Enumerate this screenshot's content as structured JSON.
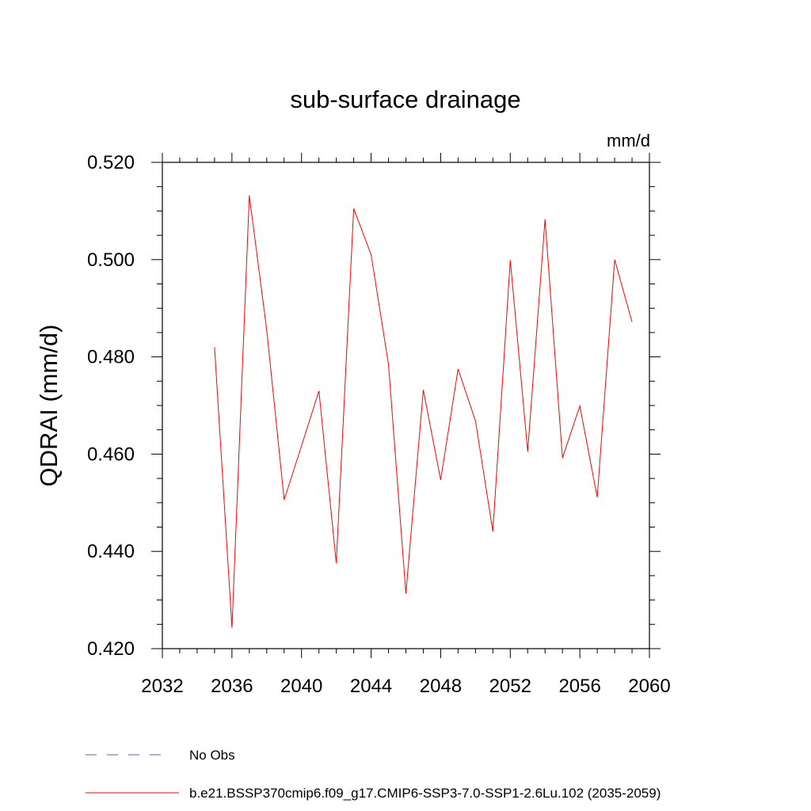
{
  "chart_data": {
    "type": "line",
    "title": "sub-surface drainage",
    "units_label": "mm/d",
    "xlabel": "",
    "ylabel": "QDRAI  (mm/d)",
    "xlim": [
      2032,
      2060
    ],
    "ylim": [
      0.42,
      0.52
    ],
    "x_ticks": [
      "2032",
      "2036",
      "2040",
      "2044",
      "2048",
      "2052",
      "2056",
      "2060"
    ],
    "y_ticks": [
      "0.420",
      "0.440",
      "0.460",
      "0.480",
      "0.500",
      "0.520"
    ],
    "grid": false,
    "legend_position": "bottom",
    "colors": {
      "model": "#ff0000",
      "obs": "#6b5ea8"
    },
    "series": [
      {
        "name": "b.e21.BSSP370cmip6.f09_g17.CMIP6-SSP3-7.0-SSP1-2.6Lu.102 (2035-2059)",
        "x": [
          2035,
          2036,
          2037,
          2038,
          2039,
          2040,
          2041,
          2042,
          2043,
          2044,
          2045,
          2046,
          2047,
          2048,
          2049,
          2050,
          2051,
          2052,
          2053,
          2054,
          2055,
          2056,
          2057,
          2058,
          2059
        ],
        "values": [
          0.482,
          0.4243,
          0.5132,
          0.4855,
          0.4506,
          0.4617,
          0.473,
          0.4376,
          0.5105,
          0.501,
          0.4785,
          0.4313,
          0.4732,
          0.4547,
          0.4775,
          0.4668,
          0.4441,
          0.4999,
          0.4605,
          0.5083,
          0.4592,
          0.4699,
          0.4511,
          0.5,
          0.4872
        ]
      }
    ],
    "legend": [
      {
        "label": "No Obs",
        "style": "dashed"
      },
      {
        "label": "b.e21.BSSP370cmip6.f09_g17.CMIP6-SSP3-7.0-SSP1-2.6Lu.102 (2035-2059)",
        "style": "solid"
      }
    ]
  }
}
